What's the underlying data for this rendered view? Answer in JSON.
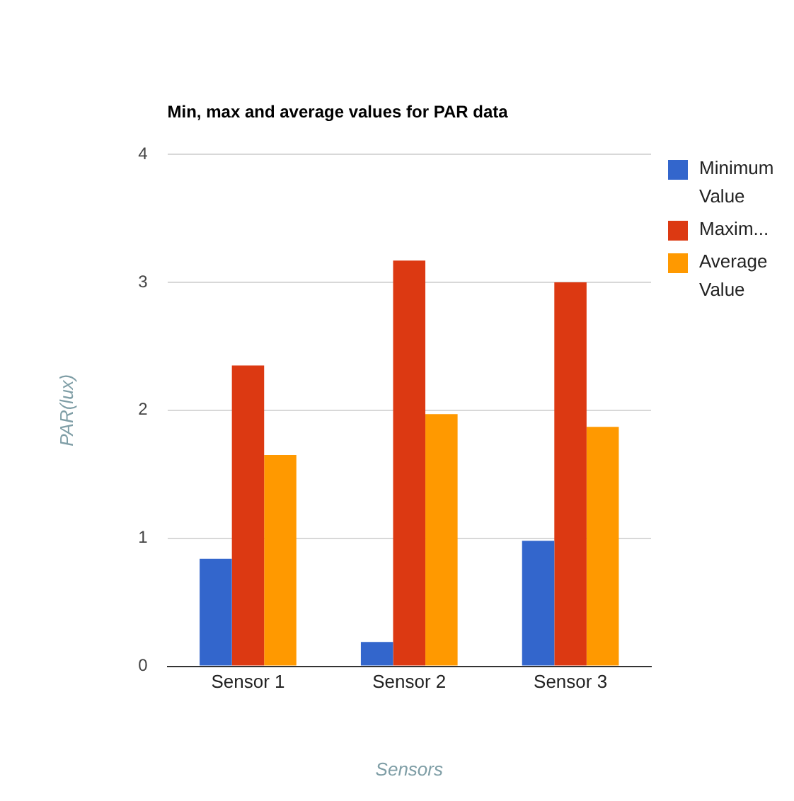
{
  "chart_data": {
    "type": "bar",
    "title": "Min, max and average values for PAR data",
    "xlabel": "Sensors",
    "ylabel": "PAR(lux)",
    "categories": [
      "Sensor 1",
      "Sensor 2",
      "Sensor 3"
    ],
    "series": [
      {
        "name": "Minimum Value",
        "color": "#3366cc",
        "values": [
          0.84,
          0.19,
          0.98
        ]
      },
      {
        "name": "Maxim...",
        "color": "#dc3912",
        "values": [
          2.35,
          3.17,
          3.0
        ]
      },
      {
        "name": "Average Value",
        "color": "#ff9900",
        "values": [
          1.65,
          1.97,
          1.87
        ]
      }
    ],
    "ylim": [
      0,
      4
    ],
    "yticks": [
      0,
      1,
      2,
      3,
      4
    ],
    "grid": "y",
    "legend": "right"
  }
}
